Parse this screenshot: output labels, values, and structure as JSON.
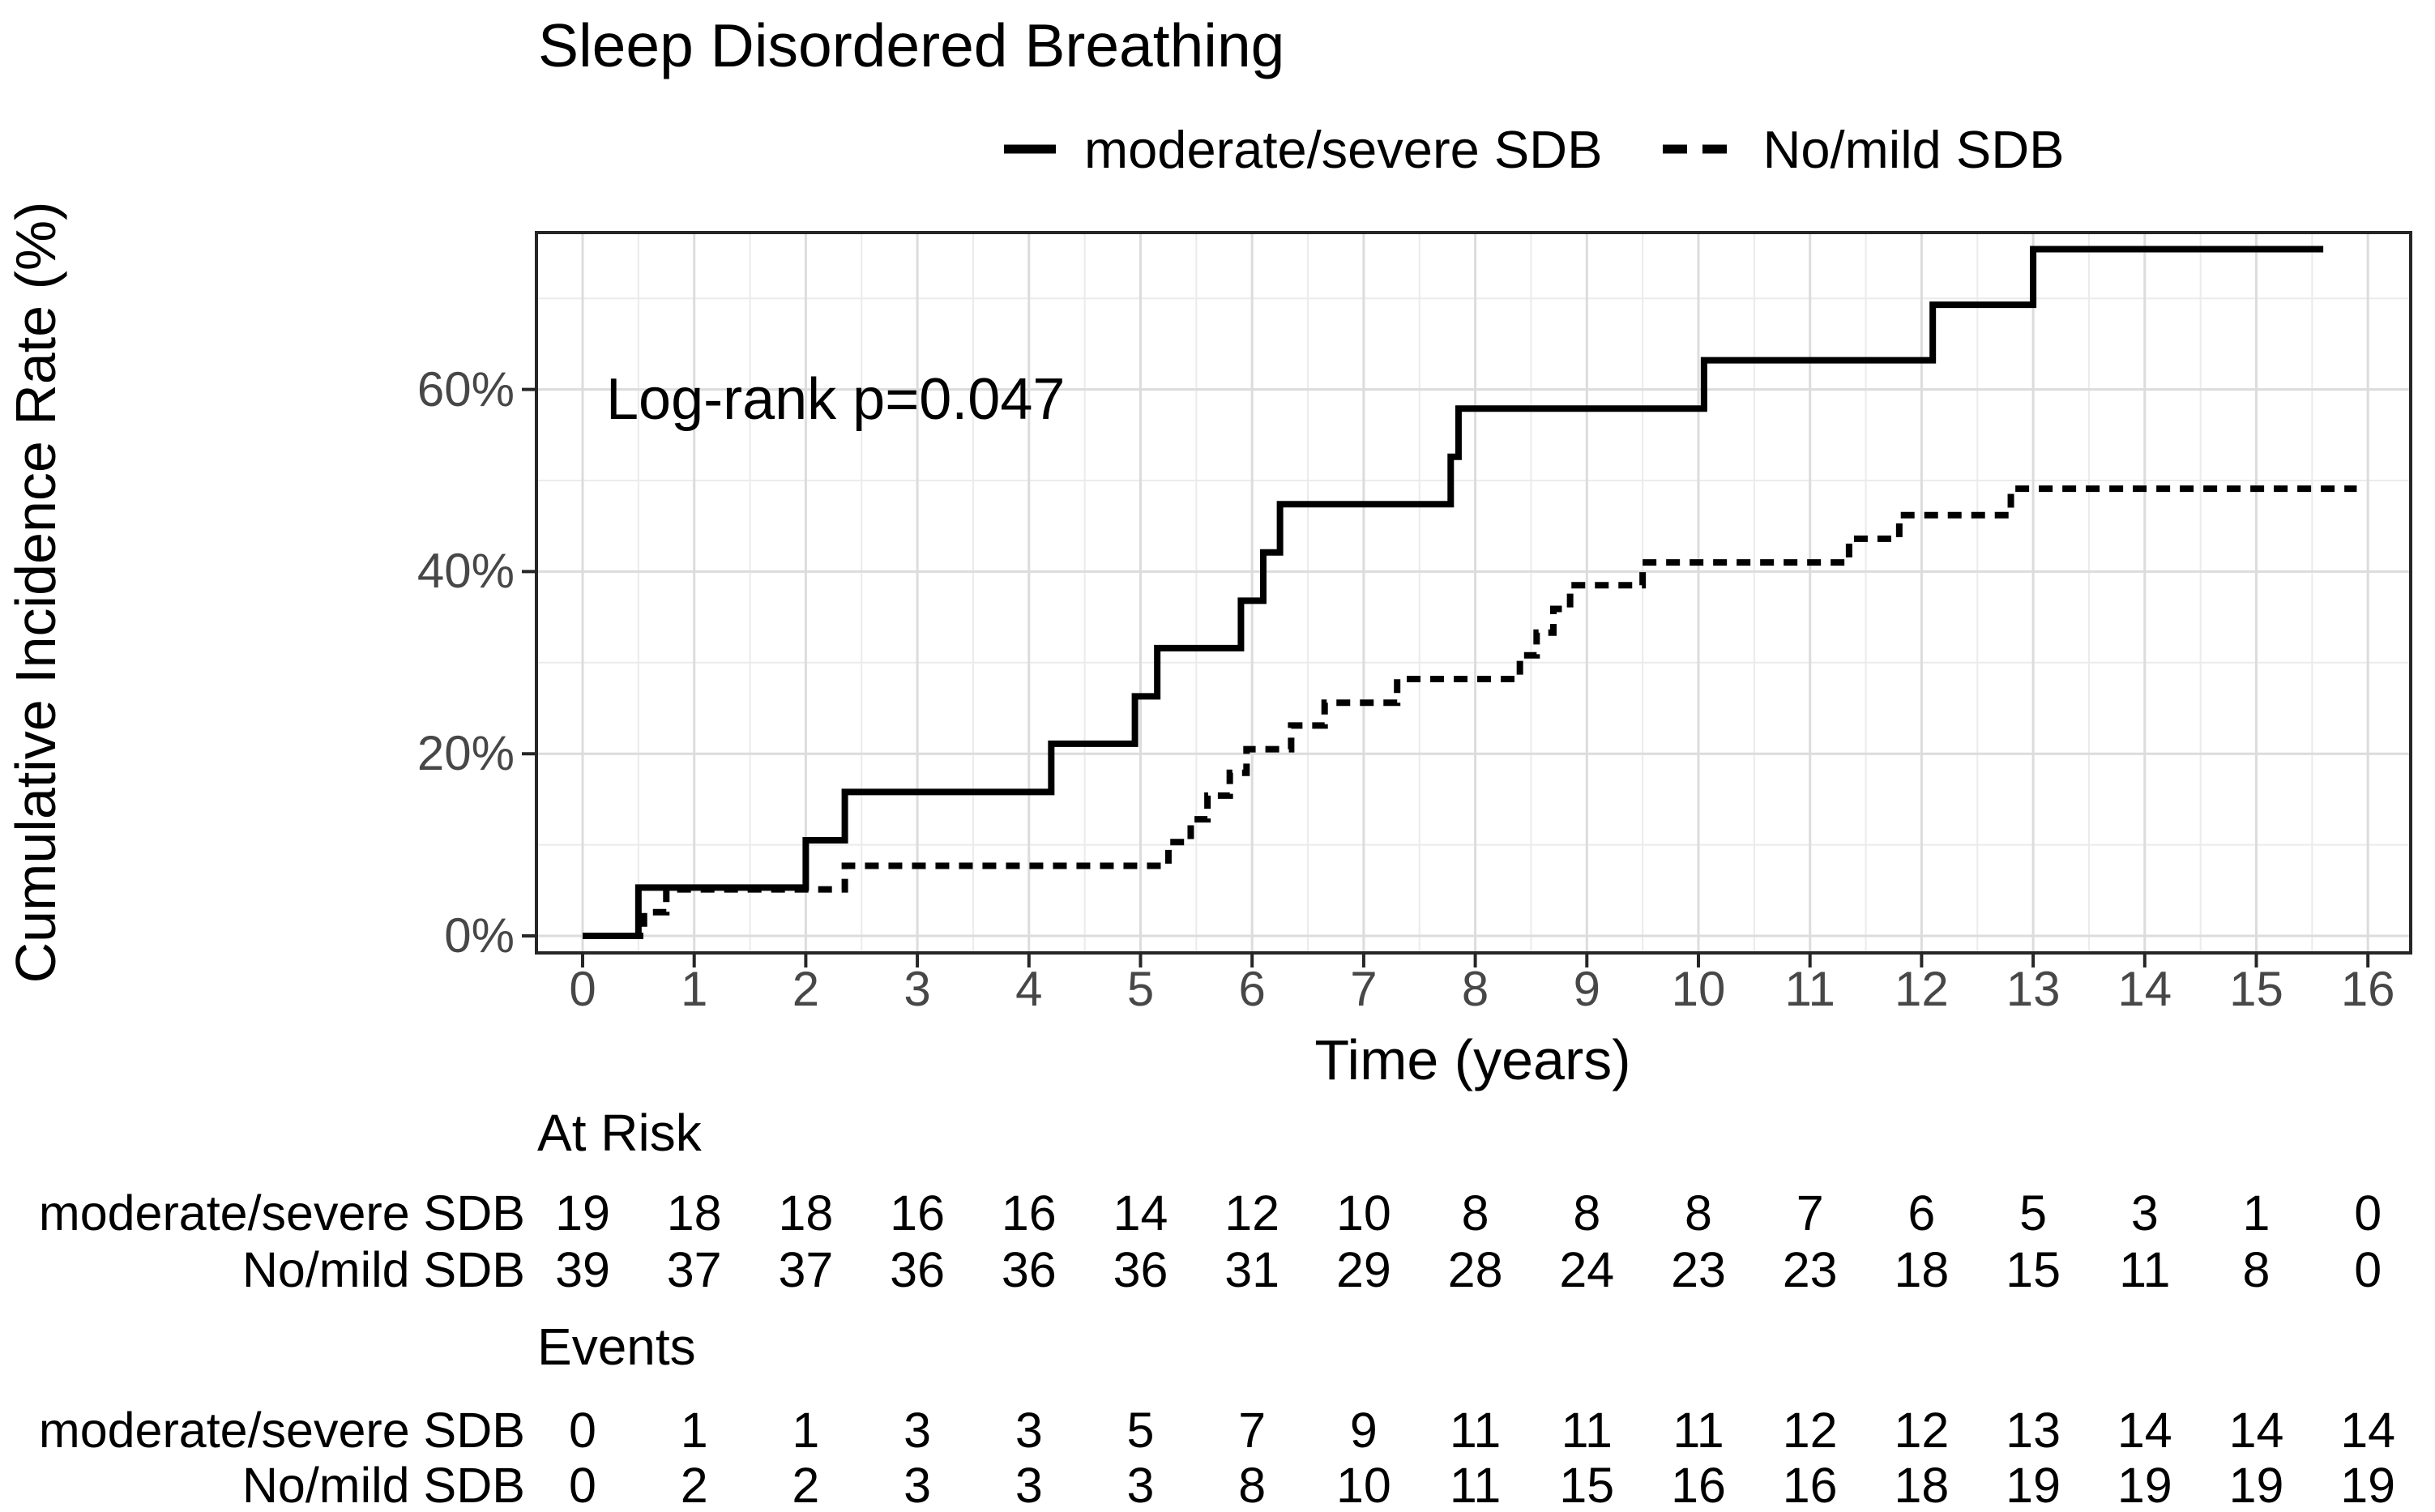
{
  "title": "Sleep Disordered Breathing",
  "legend": {
    "items": [
      {
        "label": "moderate/severe SDB",
        "line_style": "solid"
      },
      {
        "label": "No/mild SDB",
        "line_style": "dashed"
      }
    ]
  },
  "annotation": "Log-rank p=0.047",
  "axes": {
    "y_title": "Cumulative Incidence Rate (%)",
    "x_title": "Time (years)",
    "y_ticks": [
      {
        "label": "0%",
        "value": 0
      },
      {
        "label": "20%",
        "value": 20
      },
      {
        "label": "40%",
        "value": 40
      },
      {
        "label": "60%",
        "value": 60
      }
    ],
    "x_ticks": [
      {
        "label": "0",
        "value": 0
      },
      {
        "label": "1",
        "value": 1
      },
      {
        "label": "2",
        "value": 2
      },
      {
        "label": "3",
        "value": 3
      },
      {
        "label": "4",
        "value": 4
      },
      {
        "label": "5",
        "value": 5
      },
      {
        "label": "6",
        "value": 6
      },
      {
        "label": "7",
        "value": 7
      },
      {
        "label": "8",
        "value": 8
      },
      {
        "label": "9",
        "value": 9
      },
      {
        "label": "10",
        "value": 10
      },
      {
        "label": "11",
        "value": 11
      },
      {
        "label": "12",
        "value": 12
      },
      {
        "label": "13",
        "value": 13
      },
      {
        "label": "14",
        "value": 14
      },
      {
        "label": "15",
        "value": 15
      },
      {
        "label": "16",
        "value": 16
      }
    ]
  },
  "chart_data": {
    "type": "line",
    "subtype": "kaplan-meier-cumulative-incidence-step",
    "title": "Sleep Disordered Breathing",
    "xlabel": "Time (years)",
    "ylabel": "Cumulative Incidence Rate (%)",
    "xlim": [
      0,
      16
    ],
    "ylim_pct": [
      0,
      77
    ],
    "x_major_ticks": [
      0,
      1,
      2,
      3,
      4,
      5,
      6,
      7,
      8,
      9,
      10,
      11,
      12,
      13,
      14,
      15,
      16
    ],
    "y_major_ticks_pct": [
      0,
      20,
      40,
      60
    ],
    "y_minor_ticks_pct": [
      10,
      30,
      50,
      70
    ],
    "grid": "major+minor, light gray on white, black panel border",
    "legend_position": "top-center",
    "annotation": {
      "text": "Log-rank p=0.047",
      "x": 0.25,
      "y_pct": 60
    },
    "series": [
      {
        "name": "moderate/severe SDB",
        "style": "solid",
        "color": "#000000",
        "steps_time_pct": [
          [
            0,
            0
          ],
          [
            0.5,
            5.3
          ],
          [
            2.0,
            10.5
          ],
          [
            2.35,
            15.8
          ],
          [
            4.2,
            21.1
          ],
          [
            4.95,
            26.3
          ],
          [
            5.15,
            31.6
          ],
          [
            5.9,
            36.8
          ],
          [
            6.1,
            42.1
          ],
          [
            6.25,
            47.4
          ],
          [
            7.78,
            52.6
          ],
          [
            7.85,
            57.9
          ],
          [
            10.05,
            63.2
          ],
          [
            12.1,
            69.3
          ],
          [
            13.0,
            75.4
          ]
        ],
        "end_time": 15.6
      },
      {
        "name": "No/mild SDB",
        "style": "dashed",
        "color": "#000000",
        "steps_time_pct": [
          [
            0,
            0
          ],
          [
            0.55,
            2.6
          ],
          [
            0.75,
            5.1
          ],
          [
            2.35,
            7.7
          ],
          [
            5.25,
            10.3
          ],
          [
            5.45,
            12.8
          ],
          [
            5.6,
            15.4
          ],
          [
            5.8,
            17.9
          ],
          [
            5.95,
            20.5
          ],
          [
            6.35,
            23.1
          ],
          [
            6.65,
            25.6
          ],
          [
            7.3,
            28.2
          ],
          [
            8.4,
            30.8
          ],
          [
            8.55,
            33.3
          ],
          [
            8.7,
            35.9
          ],
          [
            8.85,
            38.5
          ],
          [
            9.5,
            41.0
          ],
          [
            11.35,
            43.6
          ],
          [
            11.8,
            46.2
          ],
          [
            12.8,
            49.1
          ]
        ],
        "end_time": 15.9
      }
    ]
  },
  "risk_table": {
    "at_risk_header": "At Risk",
    "events_header": "Events",
    "times": [
      0,
      1,
      2,
      3,
      4,
      5,
      6,
      7,
      8,
      9,
      10,
      11,
      12,
      13,
      14,
      15,
      16
    ],
    "at_risk": [
      {
        "label": "moderate/severe SDB",
        "values": [
          19,
          18,
          18,
          16,
          16,
          14,
          12,
          10,
          8,
          8,
          8,
          7,
          6,
          5,
          3,
          1,
          0
        ]
      },
      {
        "label": "No/mild SDB",
        "values": [
          39,
          37,
          37,
          36,
          36,
          36,
          31,
          29,
          28,
          24,
          23,
          23,
          18,
          15,
          11,
          8,
          0
        ]
      }
    ],
    "events": [
      {
        "label": "moderate/severe SDB",
        "values": [
          0,
          1,
          1,
          3,
          3,
          5,
          7,
          9,
          11,
          11,
          11,
          12,
          12,
          13,
          14,
          14,
          14
        ]
      },
      {
        "label": "No/mild SDB",
        "values": [
          0,
          2,
          2,
          3,
          3,
          3,
          8,
          10,
          11,
          15,
          16,
          16,
          18,
          19,
          19,
          19,
          19
        ]
      }
    ]
  },
  "colors": {
    "curve": "#000000",
    "grid_major": "#dcdcdc",
    "grid_minor": "#ebebeb",
    "panel_border": "#262626",
    "tick_label": "#474747",
    "background": "#ffffff"
  }
}
